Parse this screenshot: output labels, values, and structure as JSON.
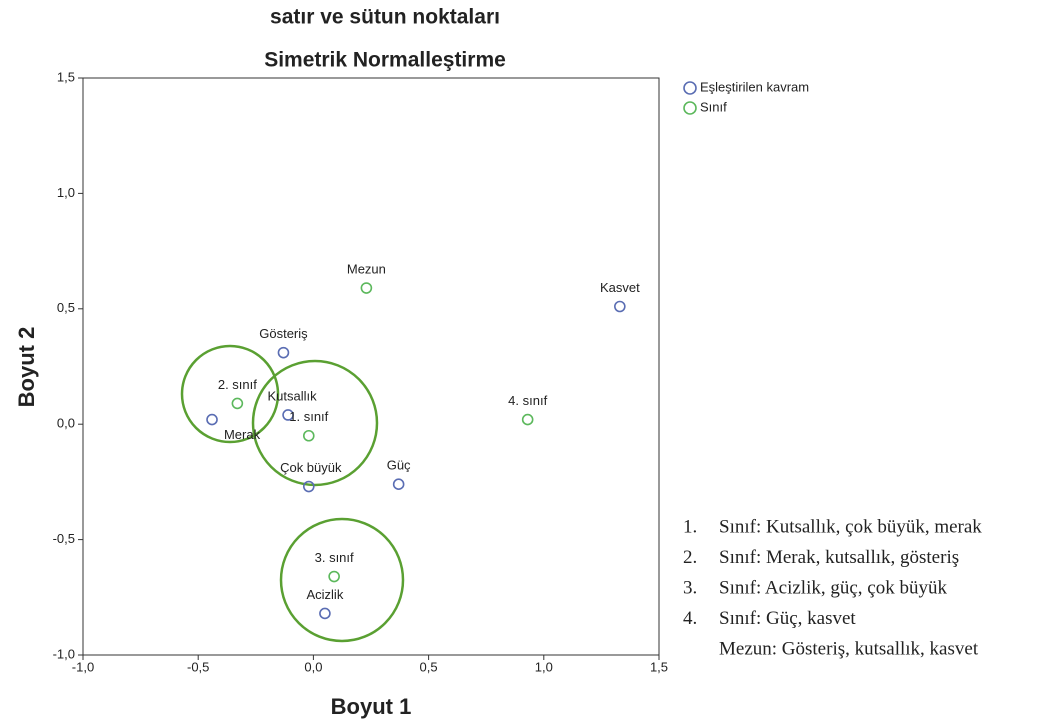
{
  "chart_data": {
    "type": "scatter",
    "title": "satır ve sütun noktaları",
    "subtitle": "Simetrik Normalleştirme",
    "xlabel": "Boyut 1",
    "ylabel": "Boyut 2",
    "xlim": [
      -1.0,
      1.5
    ],
    "ylim": [
      -1.0,
      1.5
    ],
    "xticks": [
      {
        "value": -1.0,
        "label": "-1,0"
      },
      {
        "value": -0.5,
        "label": "-0,5"
      },
      {
        "value": 0.0,
        "label": "0,0"
      },
      {
        "value": 0.5,
        "label": "0,5"
      },
      {
        "value": 1.0,
        "label": "1,0"
      },
      {
        "value": 1.5,
        "label": "1,5"
      }
    ],
    "yticks": [
      {
        "value": -1.0,
        "label": "-1,0"
      },
      {
        "value": -0.5,
        "label": "-0,5"
      },
      {
        "value": 0.0,
        "label": "0,0"
      },
      {
        "value": 0.5,
        "label": "0,5"
      },
      {
        "value": 1.0,
        "label": "1,0"
      },
      {
        "value": 1.5,
        "label": "1,5"
      }
    ],
    "legend": "outside-top-right",
    "series": [
      {
        "name": "Eşleştirilen kavram",
        "color": "#5a6db3",
        "labels": [
          "Kasvet",
          "Gösteriş",
          "Kutsallık",
          "Merak",
          "Çok büyük",
          "Güç",
          "Acizlik"
        ],
        "x": [
          1.33,
          -0.13,
          -0.11,
          -0.44,
          -0.02,
          0.37,
          0.05
        ],
        "values": [
          0.51,
          0.31,
          0.04,
          0.02,
          -0.27,
          -0.26,
          -0.82
        ]
      },
      {
        "name": "Sınıf",
        "color": "#5cb85c",
        "labels": [
          "Mezun",
          "2. sınıf",
          "1. sınıf",
          "4. sınıf",
          "3. sınıf"
        ],
        "x": [
          0.23,
          -0.33,
          -0.02,
          0.93,
          0.09
        ],
        "values": [
          0.59,
          0.09,
          -0.05,
          0.02,
          -0.66
        ]
      }
    ],
    "notes": [
      {
        "number": "1.",
        "text": "Sınıf: Kutsallık, çok büyük, merak"
      },
      {
        "number": "2.",
        "text": "Sınıf: Merak, kutsallık, gösteriş"
      },
      {
        "number": "3.",
        "text": "Sınıf: Acizlik, güç, çok büyük"
      },
      {
        "number": "4.",
        "text": "Sınıf: Güç, kasvet"
      },
      {
        "text": "Mezun: Gösteriş, kutsallık, kasvet"
      }
    ]
  }
}
